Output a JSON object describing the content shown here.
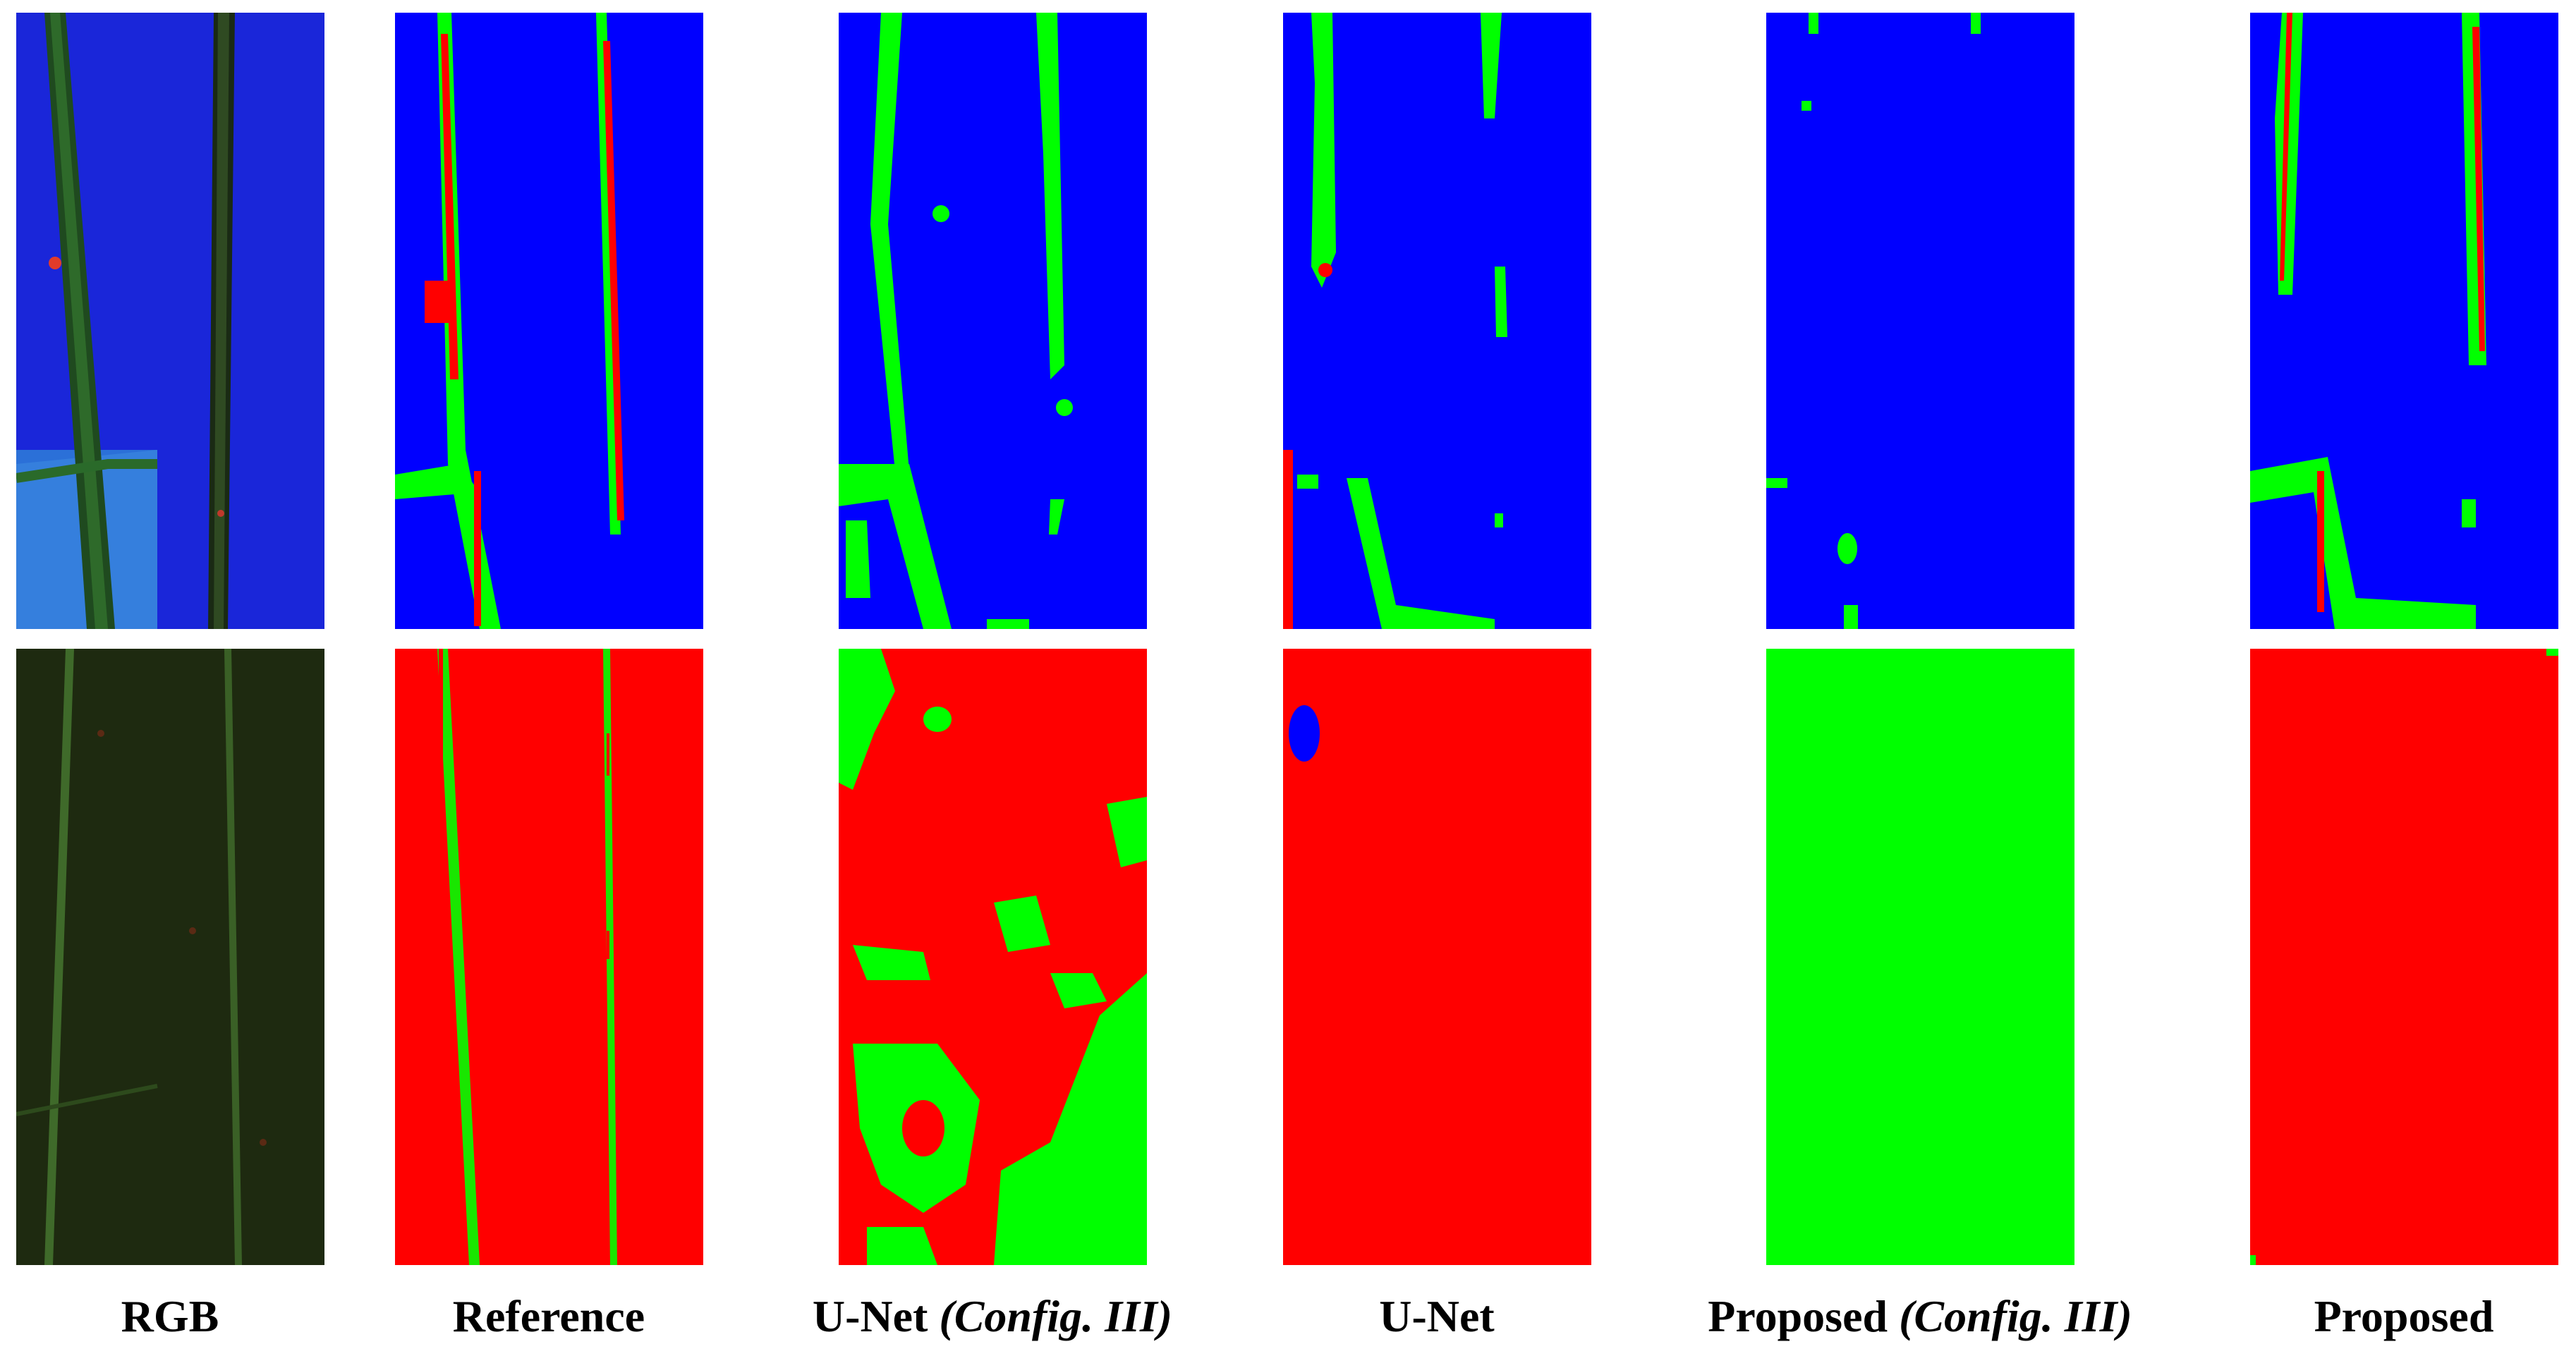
{
  "captions": {
    "rgb": "RGB",
    "reference": "Reference",
    "unet_config_main": "U-Net ",
    "unet_config_em": "(Config. III)",
    "unet": "U-Net",
    "proposed_config_main": "Proposed ",
    "proposed_config_em": "(Config. III)",
    "proposed": "Proposed"
  },
  "colors": {
    "class_blue": "#0000ff",
    "class_green": "#00ff00",
    "class_red": "#ff0000",
    "background": "#ffffff"
  }
}
